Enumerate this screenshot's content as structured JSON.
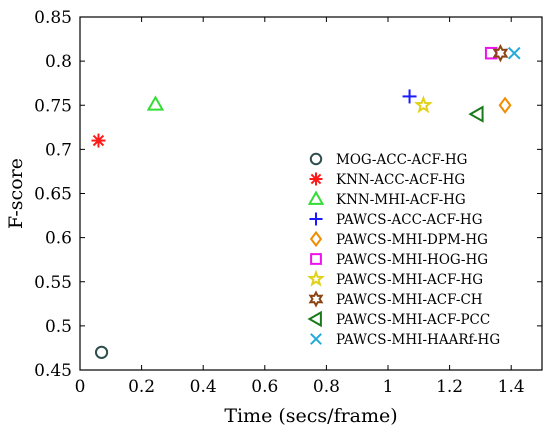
{
  "chart_data": {
    "type": "scatter",
    "xlabel": "Time (secs/frame)",
    "ylabel": "F-score",
    "xlim": [
      0,
      1.5
    ],
    "ylim": [
      0.45,
      0.85
    ],
    "xticks": [
      "0",
      "0.2",
      "0.4",
      "0.6",
      "0.8",
      "1",
      "1.2",
      "1.4"
    ],
    "yticks": [
      "0.45",
      "0.5",
      "0.55",
      "0.6",
      "0.65",
      "0.7",
      "0.75",
      "0.8",
      "0.85"
    ],
    "legend_position": "lower-right",
    "grid": false,
    "series": [
      {
        "name": "MOG-ACC-ACF-HG",
        "x": 0.07,
        "y": 0.47,
        "marker": "circle",
        "color": "#2f4f4f"
      },
      {
        "name": "KNN-ACC-ACF-HG",
        "x": 0.06,
        "y": 0.71,
        "marker": "asterisk",
        "color": "#ff1a1a"
      },
      {
        "name": "KNN-MHI-ACF-HG",
        "x": 0.245,
        "y": 0.751,
        "marker": "triangle-up",
        "color": "#33dd33"
      },
      {
        "name": "PAWCS-ACC-ACF-HG",
        "x": 1.07,
        "y": 0.76,
        "marker": "plus",
        "color": "#1a1aff"
      },
      {
        "name": "PAWCS-MHI-DPM-HG",
        "x": 1.38,
        "y": 0.75,
        "marker": "diamond",
        "color": "#f08c00"
      },
      {
        "name": "PAWCS-MHI-HOG-HG",
        "x": 1.335,
        "y": 0.809,
        "marker": "square",
        "color": "#ee11ee"
      },
      {
        "name": "PAWCS-MHI-ACF-HG",
        "x": 1.115,
        "y": 0.75,
        "marker": "star5",
        "color": "#e0d21a"
      },
      {
        "name": "PAWCS-MHI-ACF-CH",
        "x": 1.365,
        "y": 0.809,
        "marker": "star6",
        "color": "#8b4513"
      },
      {
        "name": "PAWCS-MHI-ACF-PCC",
        "x": 1.29,
        "y": 0.74,
        "marker": "triangle-left",
        "color": "#1a7a1a"
      },
      {
        "name": "PAWCS-MHI-HAARf-HG",
        "x": 1.41,
        "y": 0.809,
        "marker": "x",
        "color": "#22aadd"
      }
    ]
  }
}
